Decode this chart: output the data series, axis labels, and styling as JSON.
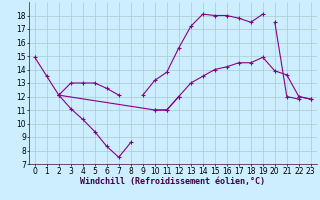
{
  "background_color": "#cceeff",
  "grid_color": "#aacccc",
  "line_color": "#880088",
  "marker": "+",
  "xlabel": "Windchill (Refroidissement éolien,°C)",
  "xlabel_fontsize": 6.0,
  "tick_fontsize": 5.5,
  "ylim": [
    7,
    19
  ],
  "xlim": [
    -0.5,
    23.5
  ],
  "yticks": [
    7,
    8,
    9,
    10,
    11,
    12,
    13,
    14,
    15,
    16,
    17,
    18
  ],
  "xticks": [
    0,
    1,
    2,
    3,
    4,
    5,
    6,
    7,
    8,
    9,
    10,
    11,
    12,
    13,
    14,
    15,
    16,
    17,
    18,
    19,
    20,
    21,
    22,
    23
  ],
  "series": [
    {
      "segments": [
        {
          "x": [
            0,
            1,
            2
          ],
          "y": [
            14.9,
            13.5,
            12.1
          ]
        },
        {
          "x": [
            2,
            10,
            11,
            12
          ],
          "y": [
            12.1,
            11.0,
            11.0,
            12.0
          ]
        },
        {
          "x": [
            22,
            23
          ],
          "y": [
            12.0,
            11.8
          ]
        }
      ]
    },
    {
      "segments": [
        {
          "x": [
            2,
            3,
            4,
            5,
            6,
            7,
            8
          ],
          "y": [
            12.1,
            11.1,
            10.3,
            9.4,
            8.3,
            7.5,
            8.6
          ]
        }
      ]
    },
    {
      "segments": [
        {
          "x": [
            2,
            3,
            4,
            5,
            6,
            7
          ],
          "y": [
            12.1,
            13.0,
            13.0,
            13.0,
            12.6,
            12.1
          ]
        },
        {
          "x": [
            9,
            10,
            11,
            12,
            13,
            14,
            15,
            16,
            17,
            18,
            19
          ],
          "y": [
            12.1,
            13.2,
            13.8,
            15.6,
            17.2,
            18.1,
            18.0,
            18.0,
            17.8,
            17.5,
            18.1
          ]
        },
        {
          "x": [
            20,
            21,
            22
          ],
          "y": [
            17.5,
            12.0,
            11.8
          ]
        }
      ]
    },
    {
      "segments": [
        {
          "x": [
            10,
            11,
            12,
            13,
            14,
            15,
            16,
            17,
            18,
            19,
            20,
            21,
            22,
            23
          ],
          "y": [
            11.0,
            11.0,
            12.0,
            13.0,
            13.5,
            14.0,
            14.2,
            14.5,
            14.5,
            14.9,
            13.9,
            13.6,
            12.0,
            11.8
          ]
        }
      ]
    }
  ]
}
